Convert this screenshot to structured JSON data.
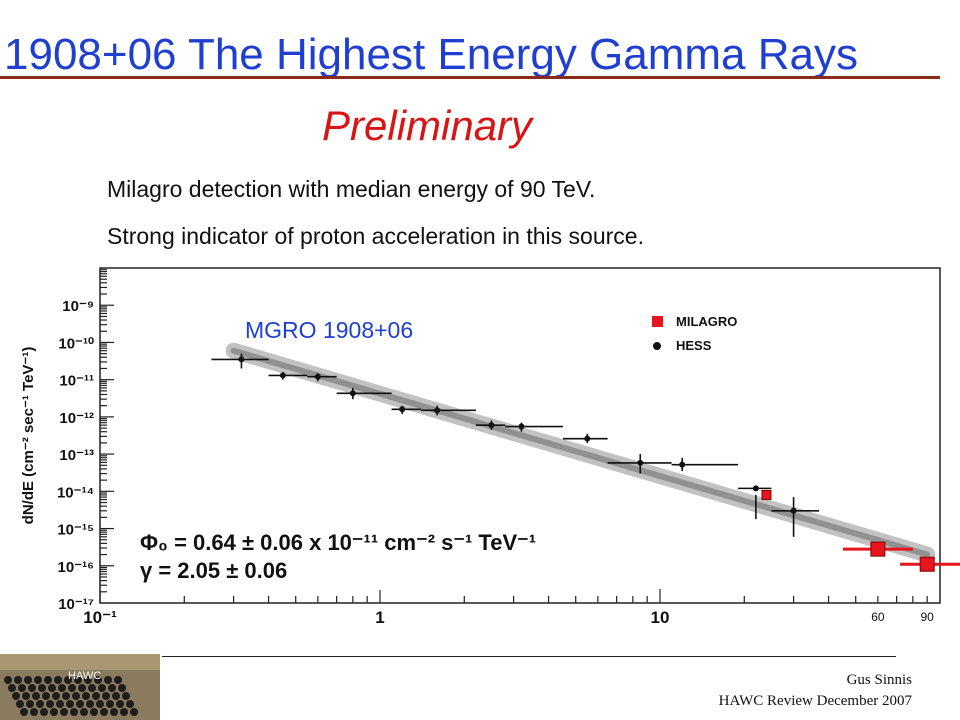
{
  "slide": {
    "title": "1908+06 The Highest Energy Gamma Rays",
    "preliminary": "Preliminary",
    "bullets": [
      "Milagro detection with median energy of 90 TeV.",
      "Strong indicator of proton acceleration in this source."
    ],
    "footer": {
      "author": "Gus Sinnis",
      "event": "HAWC Review December 2007",
      "logo_label": "HAWC"
    }
  },
  "chart_data": {
    "type": "scatter",
    "source_label": "MGRO 1908+06",
    "ylabel": "dN/dE (cm⁻² sec⁻¹ TeV⁻¹)",
    "xlabel": "",
    "x_scale": "log",
    "y_scale": "log",
    "xlim": [
      0.1,
      100
    ],
    "ylim": [
      1e-17,
      1e-08
    ],
    "x_ticks": [
      {
        "value": 0.1,
        "label": "10⁻¹"
      },
      {
        "value": 1,
        "label": "1"
      },
      {
        "value": 10,
        "label": "10"
      }
    ],
    "y_ticks": [
      {
        "value": 1e-09,
        "label": "10⁻⁹"
      },
      {
        "value": 1e-10,
        "label": "10⁻¹⁰"
      },
      {
        "value": 1e-11,
        "label": "10⁻¹¹"
      },
      {
        "value": 1e-12,
        "label": "10⁻¹²"
      },
      {
        "value": 1e-13,
        "label": "10⁻¹³"
      },
      {
        "value": 1e-14,
        "label": "10⁻¹⁴"
      },
      {
        "value": 1e-15,
        "label": "10⁻¹⁵"
      },
      {
        "value": 1e-16,
        "label": "10⁻¹⁶"
      },
      {
        "value": 1e-17,
        "label": "10⁻¹⁷"
      }
    ],
    "extra_x_labels": [
      {
        "value": 60,
        "label": "60"
      },
      {
        "value": 90,
        "label": "90"
      }
    ],
    "legend": [
      {
        "name": "MILAGRO",
        "color": "#e8141e",
        "marker": "square"
      },
      {
        "name": "HESS",
        "color": "#111111",
        "marker": "circle"
      }
    ],
    "legend_position": "top-right",
    "grid": true,
    "fit_text": [
      "Φ₀ = 0.64   ± 0.06 x 10⁻¹¹ cm⁻² s⁻¹ TeV⁻¹",
      "γ   = 2.05  ± 0.06"
    ],
    "fit_line": {
      "x": [
        0.3,
        90
      ],
      "y": [
        6e-11,
        2e-16
      ]
    },
    "series": [
      {
        "name": "HESS",
        "color": "#111111",
        "points": [
          {
            "x": 0.32,
            "y": 3.5e-11,
            "xlo": 0.25,
            "xhi": 0.4,
            "ylo": 2e-11,
            "yhi": 5e-11
          },
          {
            "x": 0.45,
            "y": 1.3e-11,
            "xlo": 0.4,
            "xhi": 0.55,
            "ylo": 1e-11,
            "yhi": 1.6e-11
          },
          {
            "x": 0.6,
            "y": 1.2e-11,
            "xlo": 0.55,
            "xhi": 0.7,
            "ylo": 9e-12,
            "yhi": 1.5e-11
          },
          {
            "x": 0.8,
            "y": 4.3e-12,
            "xlo": 0.7,
            "xhi": 1.1,
            "ylo": 3e-12,
            "yhi": 6e-12
          },
          {
            "x": 1.2,
            "y": 1.6e-12,
            "xlo": 1.1,
            "xhi": 1.4,
            "ylo": 1.2e-12,
            "yhi": 2e-12
          },
          {
            "x": 1.6,
            "y": 1.5e-12,
            "xlo": 1.4,
            "xhi": 2.2,
            "ylo": 1.1e-12,
            "yhi": 2e-12
          },
          {
            "x": 2.5,
            "y": 6e-13,
            "xlo": 2.2,
            "xhi": 2.8,
            "ylo": 4.5e-13,
            "yhi": 8e-13
          },
          {
            "x": 3.2,
            "y": 5.5e-13,
            "xlo": 2.8,
            "xhi": 4.5,
            "ylo": 4e-13,
            "yhi": 7e-13
          },
          {
            "x": 5.5,
            "y": 2.6e-13,
            "xlo": 4.5,
            "xhi": 6.5,
            "ylo": 2e-13,
            "yhi": 3.5e-13
          },
          {
            "x": 8.5,
            "y": 5.8e-14,
            "xlo": 6.5,
            "xhi": 11,
            "ylo": 3e-14,
            "yhi": 1e-13
          },
          {
            "x": 12,
            "y": 5.2e-14,
            "xlo": 11,
            "xhi": 19,
            "ylo": 3.5e-14,
            "yhi": 8e-14
          },
          {
            "x": 22,
            "y": 1.2e-14,
            "xlo": 19,
            "xhi": 25,
            "ylo": 8e-15,
            "yhi": 1.8e-15
          },
          {
            "x": 30,
            "y": 3e-15,
            "xlo": 25,
            "xhi": 37,
            "ylo": 6e-16,
            "yhi": 7e-15
          }
        ]
      },
      {
        "name": "MILAGRO",
        "color": "#e8141e",
        "points": [
          {
            "x": 24,
            "y": 8e-15
          },
          {
            "x": 60,
            "y": 2.8e-16,
            "xlo": 45,
            "xhi": 80
          },
          {
            "x": 90,
            "y": 1.1e-16,
            "xlo": 72,
            "xhi": 120
          }
        ]
      }
    ]
  }
}
